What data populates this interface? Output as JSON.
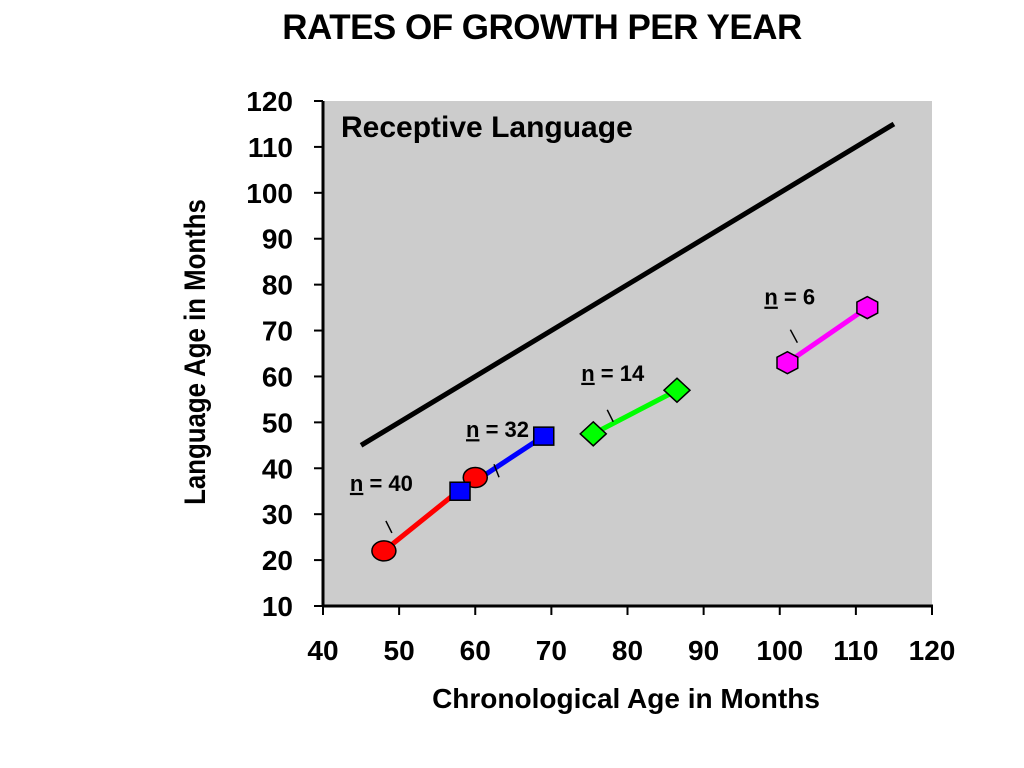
{
  "chart_data": {
    "type": "line",
    "title": "RATES OF GROWTH PER YEAR",
    "panel_title": "Receptive Language",
    "xlabel": "Chronological Age in Months",
    "ylabel": "Language Age in Months",
    "xlim": [
      40,
      120
    ],
    "ylim": [
      10,
      120
    ],
    "x_ticks": [
      40,
      50,
      60,
      70,
      80,
      90,
      100,
      110,
      120
    ],
    "y_ticks": [
      10,
      20,
      30,
      40,
      50,
      60,
      70,
      80,
      90,
      100,
      110,
      120
    ],
    "plot_background": "#cccccc",
    "grid": false,
    "reference_line": {
      "x": [
        45,
        115
      ],
      "y": [
        45,
        115
      ],
      "color": "#000000"
    },
    "series": [
      {
        "x": [
          48,
          60
        ],
        "y": [
          22,
          38
        ],
        "color": "#ff0000",
        "start_marker": "circle",
        "end_marker": "circle",
        "annotation": "40"
      },
      {
        "x": [
          58,
          69
        ],
        "y": [
          35,
          47
        ],
        "color": "#0000ff",
        "start_marker": "square",
        "end_marker": "square",
        "annotation": "32"
      },
      {
        "x": [
          75.5,
          86.5
        ],
        "y": [
          47.5,
          57
        ],
        "color": "#00ff00",
        "start_marker": "diamond",
        "end_marker": "diamond",
        "annotation": "14"
      },
      {
        "x": [
          101,
          111.5
        ],
        "y": [
          63,
          75
        ],
        "color": "#ff00ff",
        "start_marker": "hexagon",
        "end_marker": "hexagon",
        "annotation": "6"
      }
    ],
    "annotation_prefix": "n",
    "annotation_infix": " = "
  }
}
